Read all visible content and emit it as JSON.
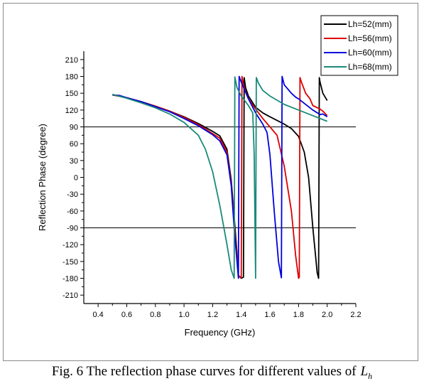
{
  "chart_data": {
    "type": "line",
    "xlabel": "Frequency (GHz)",
    "ylabel": "Reflection Phase (degree)",
    "xlim": [
      0.3,
      2.2
    ],
    "ylim": [
      -225,
      225
    ],
    "xticks": [
      0.4,
      0.6,
      0.8,
      1.0,
      1.2,
      1.4,
      1.6,
      1.8,
      2.0,
      2.2
    ],
    "xtick_labels": [
      "0.4",
      "0.6",
      "0.8",
      "1.0",
      "1.2",
      "1.4",
      "1.6",
      "1.8",
      "2.0",
      "2.2"
    ],
    "yticks": [
      210,
      180,
      150,
      120,
      90,
      60,
      30,
      0,
      -30,
      -60,
      -90,
      -120,
      -150,
      -180,
      -210
    ],
    "ytick_labels": [
      "210",
      "180",
      "150",
      "120",
      "90",
      "60",
      "30",
      "0",
      "-30",
      "-60",
      "-90",
      "-120",
      "-150",
      "-180",
      "-210"
    ],
    "reference_lines": [
      90,
      -90
    ],
    "legend_position": "top-right",
    "series": [
      {
        "name": "Lh=52(mm)",
        "color": "#000000",
        "points": [
          [
            0.5,
            147
          ],
          [
            0.6,
            142
          ],
          [
            0.7,
            135
          ],
          [
            0.8,
            127
          ],
          [
            0.9,
            118
          ],
          [
            1.0,
            108
          ],
          [
            1.1,
            96
          ],
          [
            1.2,
            82
          ],
          [
            1.25,
            74
          ],
          [
            1.3,
            50
          ],
          [
            1.33,
            -5
          ],
          [
            1.35,
            -70
          ],
          [
            1.37,
            -135
          ],
          [
            1.38,
            -175
          ],
          [
            1.4,
            -180
          ],
          [
            1.415,
            -178
          ],
          [
            1.42,
            178
          ],
          [
            1.43,
            160
          ],
          [
            1.45,
            145
          ],
          [
            1.5,
            125
          ],
          [
            1.55,
            115
          ],
          [
            1.6,
            108
          ],
          [
            1.7,
            95
          ],
          [
            1.75,
            87
          ],
          [
            1.8,
            73
          ],
          [
            1.84,
            45
          ],
          [
            1.87,
            0
          ],
          [
            1.9,
            -90
          ],
          [
            1.93,
            -170
          ],
          [
            1.94,
            -180
          ],
          [
            1.945,
            178
          ],
          [
            1.95,
            170
          ],
          [
            1.97,
            150
          ],
          [
            2.0,
            137
          ]
        ]
      },
      {
        "name": "Lh=56(mm)",
        "color": "#dd0000",
        "points": [
          [
            0.5,
            147
          ],
          [
            0.6,
            142
          ],
          [
            0.7,
            135
          ],
          [
            0.8,
            127
          ],
          [
            0.9,
            118
          ],
          [
            1.0,
            107
          ],
          [
            1.1,
            94
          ],
          [
            1.2,
            78
          ],
          [
            1.25,
            70
          ],
          [
            1.3,
            45
          ],
          [
            1.33,
            -10
          ],
          [
            1.35,
            -80
          ],
          [
            1.37,
            -140
          ],
          [
            1.38,
            -175
          ],
          [
            1.4,
            -179
          ],
          [
            1.405,
            180
          ],
          [
            1.42,
            160
          ],
          [
            1.45,
            140
          ],
          [
            1.5,
            122
          ],
          [
            1.55,
            105
          ],
          [
            1.6,
            90
          ],
          [
            1.65,
            75
          ],
          [
            1.7,
            20
          ],
          [
            1.75,
            -60
          ],
          [
            1.78,
            -140
          ],
          [
            1.8,
            -180
          ],
          [
            1.805,
            -178
          ],
          [
            1.81,
            178
          ],
          [
            1.82,
            170
          ],
          [
            1.85,
            150
          ],
          [
            1.88,
            140
          ],
          [
            1.9,
            128
          ],
          [
            1.95,
            122
          ],
          [
            1.97,
            118
          ],
          [
            2.0,
            110
          ]
        ]
      },
      {
        "name": "Lh=60(mm)",
        "color": "#0000dd",
        "points": [
          [
            0.5,
            147
          ],
          [
            0.55,
            146
          ],
          [
            0.6,
            142
          ],
          [
            0.7,
            135
          ],
          [
            0.8,
            126
          ],
          [
            0.9,
            117
          ],
          [
            1.0,
            105
          ],
          [
            1.1,
            92
          ],
          [
            1.2,
            76
          ],
          [
            1.25,
            65
          ],
          [
            1.3,
            40
          ],
          [
            1.33,
            -15
          ],
          [
            1.35,
            -90
          ],
          [
            1.37,
            -150
          ],
          [
            1.38,
            -180
          ],
          [
            1.385,
            180
          ],
          [
            1.4,
            170
          ],
          [
            1.45,
            140
          ],
          [
            1.5,
            115
          ],
          [
            1.55,
            95
          ],
          [
            1.58,
            80
          ],
          [
            1.6,
            40
          ],
          [
            1.63,
            -60
          ],
          [
            1.66,
            -150
          ],
          [
            1.68,
            -179
          ],
          [
            1.685,
            180
          ],
          [
            1.7,
            165
          ],
          [
            1.75,
            150
          ],
          [
            1.78,
            143
          ],
          [
            1.8,
            140
          ],
          [
            1.85,
            130
          ],
          [
            1.9,
            120
          ],
          [
            1.95,
            112
          ],
          [
            1.97,
            113
          ],
          [
            2.0,
            108
          ]
        ]
      },
      {
        "name": "Lh=68(mm)",
        "color": "#1a8a7a",
        "points": [
          [
            0.5,
            148
          ],
          [
            0.6,
            141
          ],
          [
            0.7,
            133
          ],
          [
            0.8,
            124
          ],
          [
            0.9,
            113
          ],
          [
            1.0,
            98
          ],
          [
            1.1,
            75
          ],
          [
            1.15,
            50
          ],
          [
            1.2,
            10
          ],
          [
            1.25,
            -50
          ],
          [
            1.3,
            -120
          ],
          [
            1.33,
            -165
          ],
          [
            1.35,
            -180
          ],
          [
            1.355,
            179
          ],
          [
            1.37,
            160
          ],
          [
            1.4,
            145
          ],
          [
            1.45,
            128
          ],
          [
            1.48,
            115
          ],
          [
            1.49,
            40
          ],
          [
            1.5,
            -180
          ],
          [
            1.505,
            178
          ],
          [
            1.52,
            168
          ],
          [
            1.55,
            155
          ],
          [
            1.6,
            145
          ],
          [
            1.7,
            130
          ],
          [
            1.8,
            120
          ],
          [
            1.9,
            110
          ],
          [
            2.0,
            100
          ]
        ]
      }
    ]
  },
  "caption": {
    "text": "Fig. 6 The reflection phase curves for different values of",
    "symbol": "L",
    "subscript": "h"
  }
}
